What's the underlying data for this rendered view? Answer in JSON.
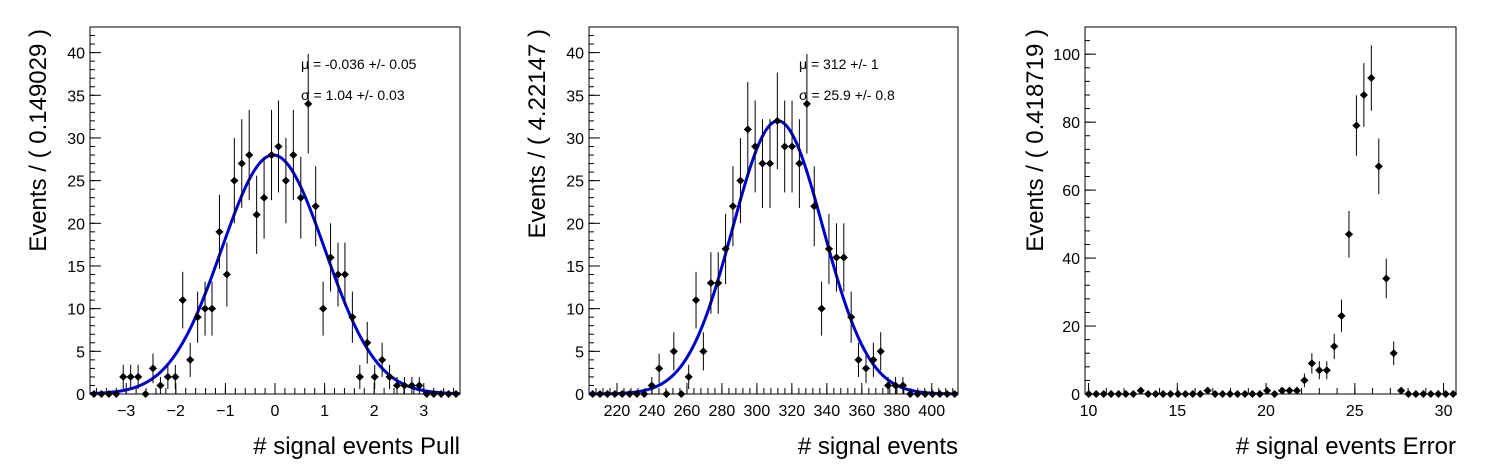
{
  "chart_data": [
    {
      "type": "scatter",
      "xlabel": "# signal events Pull",
      "ylabel": "Events / ( 0.149029 )",
      "xlim": [
        -3.73,
        3.73
      ],
      "ylim": [
        0,
        43
      ],
      "xticks": [
        -3,
        -2,
        -1,
        0,
        1,
        2,
        3
      ],
      "yticks": [
        0,
        5,
        10,
        15,
        20,
        25,
        30,
        35,
        40
      ],
      "stats": [
        "μ = -0.036 +/- 0.05",
        "σ =  1.04 +/- 0.03"
      ],
      "fit": {
        "type": "gaussian",
        "amplitude": 28,
        "mean": -0.036,
        "sigma": 1.04,
        "color": "#0000cc"
      },
      "series": [
        {
          "x": [
            -3.65,
            -3.5,
            -3.35,
            -3.2,
            -3.06,
            -2.91,
            -2.76,
            -2.61,
            -2.46,
            -2.31,
            -2.16,
            -2.01,
            -1.86,
            -1.71,
            -1.56,
            -1.41,
            -1.27,
            -1.12,
            -0.97,
            -0.82,
            -0.67,
            -0.52,
            -0.37,
            -0.22,
            -0.07,
            0.07,
            0.22,
            0.37,
            0.52,
            0.67,
            0.82,
            0.97,
            1.12,
            1.27,
            1.41,
            1.56,
            1.71,
            1.86,
            2.01,
            2.16,
            2.31,
            2.46,
            2.61,
            2.76,
            2.91,
            3.06,
            3.2,
            3.35,
            3.5,
            3.65
          ],
          "y": [
            0,
            0,
            0,
            0,
            2,
            2,
            2,
            0,
            3,
            1,
            2,
            2,
            11,
            4,
            9,
            10,
            10,
            19,
            14,
            25,
            27,
            28,
            21,
            23,
            28,
            29,
            25,
            28,
            23,
            34,
            22,
            10,
            16,
            14,
            14,
            9,
            2,
            6,
            2,
            4,
            2,
            1,
            1,
            1,
            1,
            0,
            0,
            0,
            0,
            0
          ]
        }
      ]
    },
    {
      "type": "scatter",
      "xlabel": "# signal events",
      "ylabel": "Events / ( 4.22147 )",
      "xlim": [
        204,
        415
      ],
      "ylim": [
        0,
        43
      ],
      "xticks": [
        220,
        240,
        260,
        280,
        300,
        320,
        340,
        360,
        380,
        400
      ],
      "yticks": [
        0,
        5,
        10,
        15,
        20,
        25,
        30,
        35,
        40
      ],
      "stats": [
        "μ =  312 +/- 1",
        "σ =  25.9 +/- 0.8"
      ],
      "fit": {
        "type": "gaussian",
        "amplitude": 32,
        "mean": 312,
        "sigma": 25.9,
        "color": "#0000cc"
      },
      "series": [
        {
          "x": [
            206.1,
            210.3,
            214.5,
            218.8,
            223.0,
            227.2,
            231.4,
            235.6,
            239.9,
            244.1,
            248.3,
            252.5,
            256.8,
            261.0,
            265.2,
            269.4,
            273.7,
            277.9,
            282.1,
            286.3,
            290.6,
            294.8,
            299.0,
            303.2,
            307.5,
            311.7,
            315.9,
            320.1,
            324.3,
            328.6,
            332.8,
            337.0,
            341.2,
            345.5,
            349.7,
            353.9,
            358.1,
            362.4,
            366.6,
            370.8,
            375.0,
            379.3,
            383.5,
            387.7,
            391.9,
            396.2,
            400.4,
            404.6,
            408.8,
            413.1
          ],
          "y": [
            0,
            0,
            0,
            0,
            0,
            0,
            0,
            0,
            1,
            3,
            0,
            5,
            0,
            2,
            11,
            5,
            13,
            13,
            17,
            22,
            25,
            31,
            29,
            27,
            27,
            32,
            29,
            29,
            27,
            34,
            22,
            10,
            17,
            16,
            16,
            9,
            4,
            3,
            4,
            5,
            1,
            1,
            1,
            0,
            0,
            0,
            0,
            0,
            0,
            0
          ]
        }
      ]
    },
    {
      "type": "scatter",
      "xlabel": "# signal events Error",
      "ylabel": "Events / ( 0.418719 )",
      "xlim": [
        9.8,
        30.7
      ],
      "ylim": [
        0,
        108
      ],
      "xticks": [
        10,
        15,
        20,
        25,
        30
      ],
      "yticks": [
        0,
        20,
        40,
        60,
        80,
        100
      ],
      "series": [
        {
          "x": [
            10.01,
            10.43,
            10.85,
            11.27,
            11.69,
            12.1,
            12.52,
            12.94,
            13.36,
            13.78,
            14.2,
            14.62,
            15.04,
            15.46,
            15.87,
            16.29,
            16.71,
            17.13,
            17.55,
            17.97,
            18.39,
            18.81,
            19.23,
            19.65,
            20.06,
            20.48,
            20.9,
            21.32,
            21.74,
            22.16,
            22.58,
            23.0,
            23.42,
            23.84,
            24.25,
            24.67,
            25.09,
            25.51,
            25.93,
            26.35,
            26.77,
            27.19,
            27.61,
            28.02,
            28.44,
            28.86,
            29.28,
            29.7,
            30.12,
            30.54
          ],
          "y": [
            0,
            0,
            0,
            0,
            0,
            0,
            0,
            1,
            0,
            0,
            0,
            0,
            0,
            0,
            0,
            0,
            1,
            0,
            0,
            0,
            0,
            0,
            0,
            0,
            1,
            0,
            1,
            1,
            1,
            4,
            9,
            7,
            7,
            14,
            23,
            47,
            79,
            88,
            93,
            67,
            34,
            12,
            1,
            0,
            0,
            0,
            0,
            0,
            0,
            0
          ]
        }
      ]
    }
  ]
}
